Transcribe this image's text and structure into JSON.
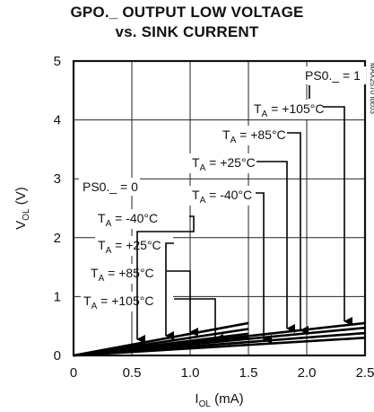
{
  "chart_data": {
    "type": "line",
    "title": "GPO._ OUTPUT LOW VOLTAGE",
    "subtitle": "vs. SINK CURRENT",
    "xlabel": {
      "main": "I",
      "sub": "OL",
      "unit": " (mA)"
    },
    "ylabel": {
      "main": "V",
      "sub": "OL",
      "unit": " (V)"
    },
    "xlim": [
      0,
      2.5
    ],
    "ylim": [
      0,
      5
    ],
    "xticks": [
      "0",
      "0.5",
      "1.0",
      "1.5",
      "2.0",
      "2.5"
    ],
    "yticks": [
      "0",
      "1",
      "2",
      "3",
      "4",
      "5"
    ],
    "grid": true,
    "watermark": "MAX2570 toc03",
    "groups": [
      {
        "name": "PS0._ = 0",
        "series": [
          {
            "name": "T_A = -40°C",
            "x": [
              0,
              1.5
            ],
            "y": [
              0,
              0.55
            ]
          },
          {
            "name": "T_A = +25°C",
            "x": [
              0,
              1.5
            ],
            "y": [
              0,
              0.45
            ]
          },
          {
            "name": "T_A = +85°C",
            "x": [
              0,
              1.5
            ],
            "y": [
              0,
              0.37
            ]
          },
          {
            "name": "T_A = +105°C",
            "x": [
              0,
              1.5
            ],
            "y": [
              0,
              0.3
            ]
          }
        ]
      },
      {
        "name": "PS0._ = 1",
        "series": [
          {
            "name": "T_A = -40°C",
            "x": [
              0,
              2.5
            ],
            "y": [
              0,
              0.55
            ]
          },
          {
            "name": "T_A = +25°C",
            "x": [
              0,
              2.5
            ],
            "y": [
              0,
              0.47
            ]
          },
          {
            "name": "T_A = +85°C",
            "x": [
              0,
              2.5
            ],
            "y": [
              0,
              0.38
            ]
          },
          {
            "name": "T_A = +105°C",
            "x": [
              0,
              2.5
            ],
            "y": [
              0,
              0.3
            ]
          }
        ]
      }
    ],
    "annotations": {
      "group0": "PS0._ = 0",
      "group1": "PS0._ = 1",
      "left": [
        {
          "prefix": "T",
          "sub": "A",
          "rest": " = -40°C"
        },
        {
          "prefix": "T",
          "sub": "A",
          "rest": " = +25°C"
        },
        {
          "prefix": "T",
          "sub": "A",
          "rest": " = +85°C"
        },
        {
          "prefix": "T",
          "sub": "A",
          "rest": " = +105°C"
        }
      ],
      "right": [
        {
          "prefix": "T",
          "sub": "A",
          "rest": " = -40°C"
        },
        {
          "prefix": "T",
          "sub": "A",
          "rest": " = +25°C"
        },
        {
          "prefix": "T",
          "sub": "A",
          "rest": " = +85°C"
        },
        {
          "prefix": "T",
          "sub": "A",
          "rest": " = +105°C"
        }
      ]
    }
  }
}
